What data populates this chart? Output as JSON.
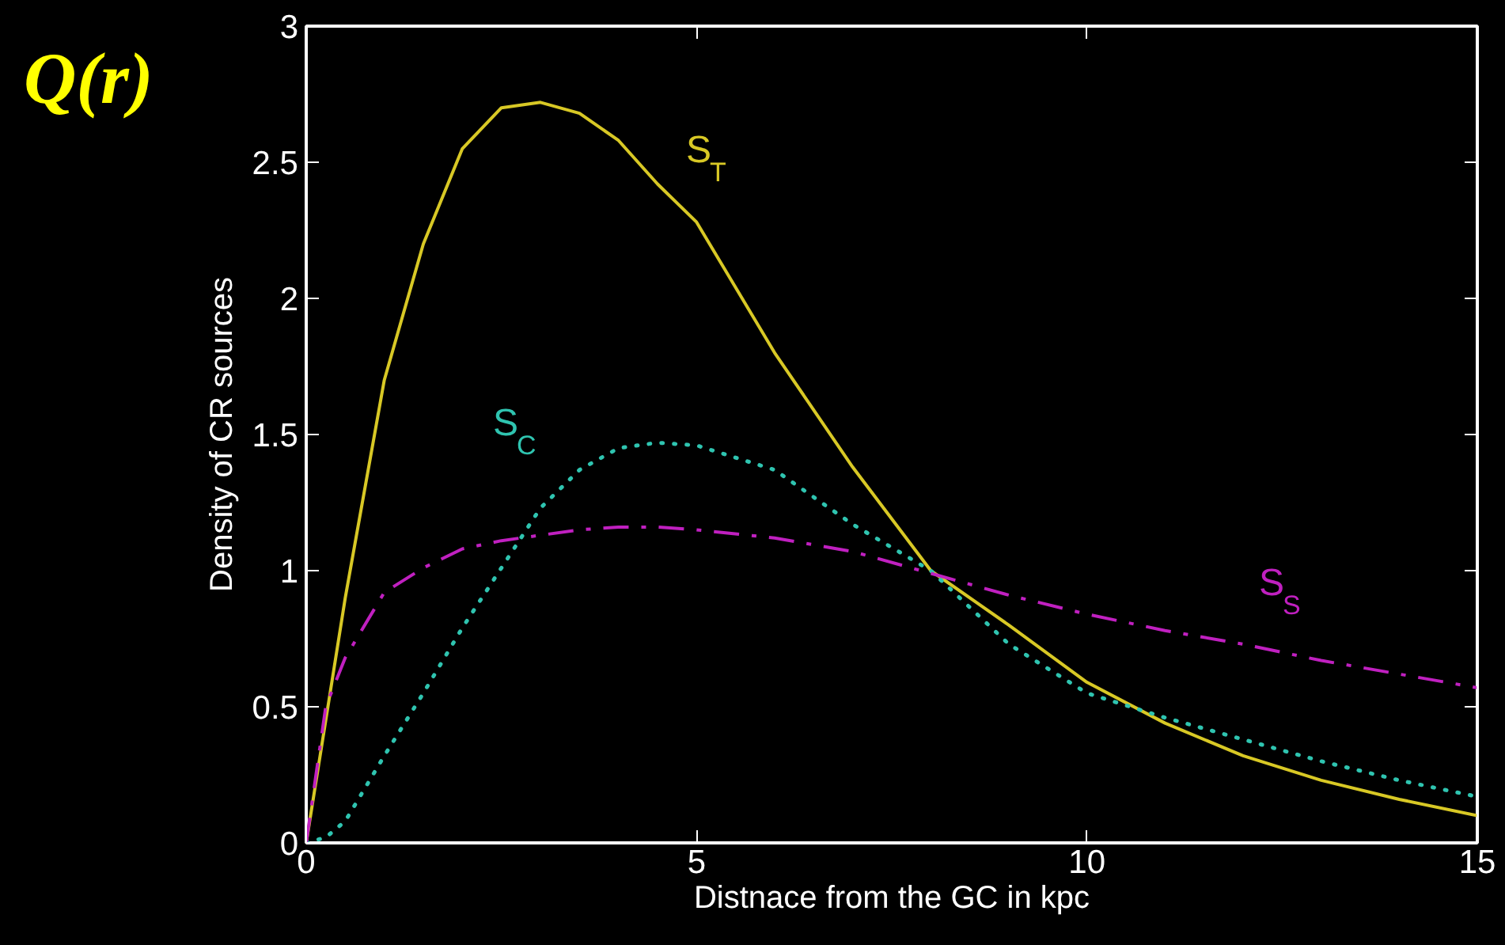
{
  "chart_data": {
    "type": "line",
    "xlabel": "Distnace from the GC in kpc",
    "ylabel": "Density of CR sources",
    "annotations": [
      "Q(r)"
    ],
    "x": [
      0,
      0.25,
      0.5,
      1,
      1.5,
      2,
      2.5,
      3,
      3.5,
      4,
      4.5,
      5,
      6,
      7,
      8,
      9,
      10,
      11,
      12,
      13,
      14,
      15
    ],
    "series": [
      {
        "name": "S$_{T}$",
        "color": "#d8c825",
        "line_style": "solid",
        "values": [
          0,
          0.45,
          0.9,
          1.7,
          2.2,
          2.55,
          2.7,
          2.72,
          2.68,
          2.58,
          2.42,
          2.28,
          1.8,
          1.38,
          1.0,
          0.8,
          0.59,
          0.44,
          0.32,
          0.23,
          0.16,
          0.1
        ]
      },
      {
        "name": "S$_{C}$",
        "color": "#2fc4b0",
        "line_style": "dotted",
        "values": [
          0,
          0.02,
          0.08,
          0.32,
          0.55,
          0.79,
          1.01,
          1.23,
          1.37,
          1.45,
          1.47,
          1.46,
          1.37,
          1.17,
          1.0,
          0.73,
          0.55,
          0.46,
          0.38,
          0.3,
          0.23,
          0.17
        ]
      },
      {
        "name": "S$_{S}$",
        "color": "#c020c0",
        "line_style": "dashed",
        "values": [
          0,
          0.5,
          0.68,
          0.92,
          1.01,
          1.08,
          1.11,
          1.13,
          1.15,
          1.16,
          1.16,
          1.15,
          1.12,
          1.07,
          0.99,
          0.91,
          0.84,
          0.78,
          0.73,
          0.67,
          0.62,
          0.57
        ]
      }
    ],
    "xlim": [
      0,
      15
    ],
    "ylim": [
      0,
      3
    ],
    "xticks": [
      0,
      5,
      10,
      15
    ],
    "yticks": [
      0,
      0.5,
      1,
      1.5,
      2,
      2.5,
      3
    ],
    "grid": false,
    "marker": "none"
  }
}
